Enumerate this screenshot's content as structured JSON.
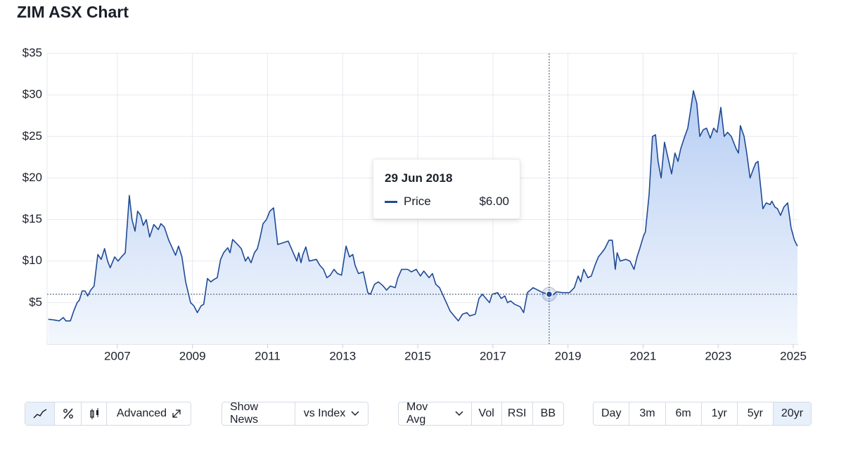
{
  "chart_data": {
    "type": "area",
    "title": "ZIM ASX Chart",
    "x": [
      2005.16,
      2005.33,
      2005.45,
      2005.56,
      2005.63,
      2005.75,
      2005.84,
      2005.93,
      2005.99,
      2006.06,
      2006.14,
      2006.21,
      2006.29,
      2006.38,
      2006.48,
      2006.57,
      2006.66,
      2006.74,
      2006.81,
      2006.93,
      2007.02,
      2007.11,
      2007.21,
      2007.32,
      2007.39,
      2007.47,
      2007.54,
      2007.62,
      2007.69,
      2007.77,
      2007.86,
      2007.97,
      2008.09,
      2008.16,
      2008.25,
      2008.37,
      2008.55,
      2008.63,
      2008.72,
      2008.82,
      2008.95,
      2009.04,
      2009.13,
      2009.23,
      2009.3,
      2009.4,
      2009.49,
      2009.58,
      2009.66,
      2009.75,
      2009.83,
      2009.94,
      2010.0,
      2010.07,
      2010.18,
      2010.3,
      2010.41,
      2010.48,
      2010.56,
      2010.65,
      2010.73,
      2010.8,
      2010.88,
      2010.97,
      2011.06,
      2011.16,
      2011.27,
      2011.55,
      2011.78,
      2011.83,
      2011.89,
      2011.94,
      2012.02,
      2012.11,
      2012.3,
      2012.39,
      2012.49,
      2012.58,
      2012.67,
      2012.77,
      2012.86,
      2012.97,
      2013.09,
      2013.18,
      2013.27,
      2013.33,
      2013.42,
      2013.55,
      2013.67,
      2013.74,
      2013.85,
      2013.95,
      2014.08,
      2014.17,
      2014.27,
      2014.4,
      2014.47,
      2014.57,
      2014.73,
      2014.83,
      2014.96,
      2015.07,
      2015.16,
      2015.3,
      2015.39,
      2015.48,
      2015.58,
      2015.71,
      2015.86,
      2015.95,
      2016.08,
      2016.19,
      2016.31,
      2016.38,
      2016.53,
      2016.63,
      2016.72,
      2016.91,
      2016.98,
      2017.13,
      2017.22,
      2017.32,
      2017.39,
      2017.47,
      2017.58,
      2017.73,
      2017.82,
      2017.92,
      2018.07,
      2018.2,
      2018.33,
      2018.5,
      2018.59,
      2018.7,
      2018.85,
      2019.04,
      2019.17,
      2019.27,
      2019.34,
      2019.42,
      2019.53,
      2019.62,
      2019.72,
      2019.81,
      2019.9,
      2019.98,
      2020.09,
      2020.18,
      2020.26,
      2020.31,
      2020.39,
      2020.54,
      2020.65,
      2020.76,
      2020.84,
      2020.91,
      2021.01,
      2021.06,
      2021.16,
      2021.25,
      2021.33,
      2021.4,
      2021.48,
      2021.57,
      2021.66,
      2021.76,
      2021.85,
      2021.93,
      2022.0,
      2022.11,
      2022.19,
      2022.26,
      2022.34,
      2022.43,
      2022.51,
      2022.6,
      2022.69,
      2022.79,
      2022.88,
      2022.97,
      2023.07,
      2023.16,
      2023.25,
      2023.35,
      2023.48,
      2023.54,
      2023.59,
      2023.69,
      2023.76,
      2023.85,
      2023.93,
      2024.0,
      2024.06,
      2024.19,
      2024.28,
      2024.38,
      2024.43,
      2024.51,
      2024.58,
      2024.66,
      2024.75,
      2024.85,
      2024.94,
      2025.03,
      2025.11
    ],
    "series": [
      {
        "name": "Price",
        "color": "#1f4a96",
        "values": [
          3.0,
          2.9,
          2.8,
          3.2,
          2.8,
          2.8,
          4.0,
          5.0,
          5.3,
          6.4,
          6.4,
          5.8,
          6.5,
          7.0,
          10.8,
          10.2,
          11.5,
          10.0,
          9.2,
          10.5,
          10.0,
          10.5,
          11.0,
          17.9,
          15.0,
          13.6,
          16.0,
          15.5,
          14.3,
          15.0,
          12.9,
          14.4,
          13.8,
          14.5,
          14.1,
          12.5,
          10.7,
          11.8,
          10.5,
          7.5,
          5.0,
          4.6,
          3.8,
          4.6,
          4.8,
          7.9,
          7.5,
          7.8,
          8.0,
          10.2,
          11.0,
          11.6,
          11.0,
          12.6,
          12.1,
          11.5,
          10.0,
          10.5,
          9.8,
          11.0,
          11.5,
          12.8,
          14.5,
          15.0,
          16.0,
          16.4,
          12.0,
          12.4,
          10.0,
          11.0,
          9.8,
          10.8,
          11.7,
          10.0,
          10.2,
          9.5,
          9.0,
          8.0,
          8.3,
          9.0,
          8.5,
          8.3,
          11.8,
          10.5,
          10.8,
          9.5,
          8.5,
          8.7,
          6.2,
          6.0,
          7.2,
          7.5,
          7.0,
          6.5,
          7.0,
          6.8,
          8.0,
          9.0,
          9.0,
          8.7,
          9.0,
          8.2,
          8.8,
          8.0,
          8.5,
          7.2,
          6.8,
          5.5,
          4.0,
          3.5,
          2.8,
          3.6,
          3.8,
          3.4,
          3.6,
          5.5,
          6.0,
          5.0,
          6.0,
          6.2,
          5.5,
          5.8,
          5.0,
          5.2,
          4.8,
          4.5,
          3.8,
          6.2,
          6.8,
          6.5,
          6.2,
          6.0,
          5.9,
          6.3,
          6.2,
          6.2,
          6.8,
          8.2,
          7.5,
          9.0,
          8.0,
          8.2,
          9.5,
          10.5,
          11.0,
          11.5,
          12.5,
          12.5,
          9.0,
          11.0,
          10.0,
          10.2,
          10.0,
          9.0,
          10.5,
          11.5,
          13.0,
          13.5,
          18.0,
          25.0,
          25.2,
          22.0,
          20.0,
          24.3,
          22.5,
          20.5,
          23.0,
          22.0,
          23.5,
          25.0,
          26.0,
          28.0,
          30.5,
          29.0,
          25.0,
          25.8,
          26.0,
          24.8,
          26.0,
          25.5,
          28.5,
          25.0,
          25.5,
          25.0,
          23.5,
          23.0,
          26.3,
          25.0,
          23.0,
          20.0,
          21.0,
          21.8,
          22.0,
          16.3,
          17.0,
          16.8,
          17.2,
          16.5,
          16.3,
          15.5,
          16.5,
          17.0,
          14.0,
          12.5,
          11.8
        ]
      }
    ],
    "xlim": [
      2005.13,
      2025.13
    ],
    "xticks": [
      2007,
      2009,
      2011,
      2013,
      2015,
      2017,
      2019,
      2021,
      2023,
      2025
    ],
    "ylim": [
      0,
      35
    ],
    "yticks": [
      {
        "value": 5,
        "label": "$5"
      },
      {
        "value": 10,
        "label": "$10"
      },
      {
        "value": 15,
        "label": "$15"
      },
      {
        "value": 20,
        "label": "$20"
      },
      {
        "value": 25,
        "label": "$25"
      },
      {
        "value": 30,
        "label": "$30"
      },
      {
        "value": 35,
        "label": "$35"
      }
    ],
    "grid": true,
    "tooltip": {
      "date": "29 Jun 2018",
      "x": 2018.5,
      "value": 6,
      "value_label": "$6.00"
    }
  },
  "controls": {
    "chart_type": {
      "advanced": "Advanced"
    },
    "news": [
      "Show News",
      "vs Index"
    ],
    "indicators": [
      "Mov Avg",
      "Vol",
      "RSI",
      "BB"
    ],
    "ranges": [
      "Day",
      "3m",
      "6m",
      "1yr",
      "5yr",
      "20yr"
    ],
    "selected_range": 5
  }
}
